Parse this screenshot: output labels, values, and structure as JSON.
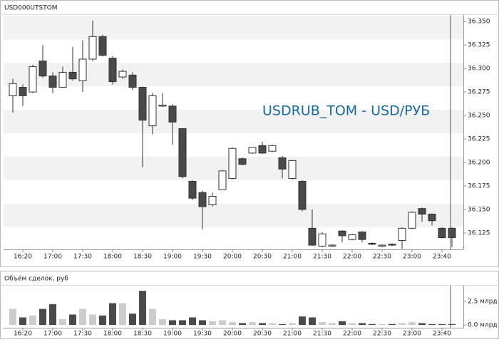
{
  "chart_data": [
    {
      "type": "candlestick",
      "title": "USD000UTSTOM",
      "annotation": "USDRUB_TOM - USD/РУБ",
      "categories": [
        null,
        "16:20",
        null,
        null,
        "17:00",
        null,
        null,
        "17:30",
        null,
        null,
        "18:00",
        null,
        null,
        "18:30",
        null,
        null,
        "19:00",
        null,
        null,
        "19:30",
        null,
        null,
        "20:00",
        null,
        null,
        "20:30",
        null,
        null,
        "21:00",
        null,
        null,
        "21:30",
        null,
        null,
        "22:00",
        null,
        null,
        "22:30",
        null,
        null,
        "23:00",
        null,
        null,
        "23:40",
        null
      ],
      "open": [
        36.271,
        36.28,
        36.275,
        36.308,
        36.292,
        36.28,
        36.296,
        36.287,
        36.31,
        36.334,
        36.311,
        36.291,
        36.293,
        36.28,
        36.239,
        36.26,
        36.26,
        36.236,
        36.18,
        36.168,
        36.155,
        36.171,
        36.183,
        36.204,
        36.21,
        36.218,
        36.212,
        36.205,
        36.183,
        36.18,
        36.13,
        36.111,
        36.111,
        36.127,
        36.118,
        36.126,
        36.114,
        36.111,
        36.113,
        36.117,
        36.13,
        36.151,
        36.145,
        36.13,
        36.13
      ],
      "high": [
        36.289,
        36.283,
        36.304,
        36.325,
        36.296,
        36.302,
        36.323,
        36.33,
        36.351,
        36.336,
        36.313,
        36.299,
        36.296,
        36.281,
        36.274,
        36.274,
        36.262,
        36.236,
        36.181,
        36.17,
        36.168,
        36.192,
        36.216,
        36.205,
        36.216,
        36.222,
        36.219,
        36.207,
        36.203,
        36.181,
        36.15,
        36.126,
        36.113,
        36.128,
        36.124,
        36.127,
        36.115,
        36.113,
        36.114,
        36.131,
        36.148,
        36.152,
        36.146,
        36.131,
        36.131
      ],
      "low": [
        36.253,
        36.26,
        36.274,
        36.29,
        36.274,
        36.28,
        36.287,
        36.275,
        36.308,
        36.313,
        36.283,
        36.289,
        36.277,
        36.195,
        36.23,
        36.259,
        36.219,
        36.183,
        36.16,
        36.129,
        36.153,
        36.171,
        36.182,
        36.197,
        36.209,
        36.209,
        36.211,
        36.183,
        36.182,
        36.148,
        36.111,
        36.11,
        36.11,
        36.115,
        36.117,
        36.115,
        36.112,
        36.11,
        36.111,
        36.108,
        36.129,
        36.137,
        36.133,
        36.119,
        36.11
      ],
      "close": [
        36.284,
        36.271,
        36.302,
        36.292,
        36.28,
        36.296,
        36.289,
        36.31,
        36.334,
        36.314,
        36.286,
        36.297,
        36.28,
        36.245,
        36.271,
        36.261,
        36.243,
        36.185,
        36.162,
        36.153,
        36.164,
        36.191,
        36.215,
        36.198,
        36.216,
        36.21,
        36.218,
        36.193,
        36.202,
        36.15,
        36.112,
        36.124,
        36.112,
        36.122,
        36.123,
        36.118,
        36.113,
        36.112,
        36.112,
        36.13,
        36.147,
        36.145,
        36.138,
        36.12,
        36.12
      ],
      "up_color": "#ffffff",
      "down_color": "#4a4a4a",
      "ylim": [
        36.1075,
        36.357
      ],
      "yticks": [
        {
          "value": 36.35,
          "label": "36.350"
        },
        36.325,
        {
          "value": 36.3,
          "label": "36.300"
        },
        36.275,
        {
          "value": 36.25,
          "label": "36.250"
        },
        36.225,
        {
          "value": 36.2,
          "label": "36.200"
        },
        36.175,
        {
          "value": 36.15,
          "label": "36.150"
        },
        36.125
      ]
    },
    {
      "type": "bar",
      "title": "Объём сделок, руб",
      "values": [
        1.7,
        0.8,
        1.0,
        1.7,
        2.2,
        0.6,
        1.1,
        1.7,
        1.1,
        1.0,
        2.3,
        2.3,
        1.2,
        3.6,
        1.7,
        0.6,
        0.5,
        0.5,
        0.8,
        0.5,
        0.4,
        0.5,
        0.3,
        0.2,
        0.3,
        0.2,
        0.2,
        0.1,
        0.2,
        0.9,
        0.8,
        0.3,
        0.2,
        0.4,
        0.2,
        0.2,
        0.1,
        0.1,
        0.1,
        0.2,
        0.3,
        0.2,
        0.1,
        0.1,
        0.1
      ],
      "colors": {
        "up": "#cccccc",
        "down": "#4a4a4a"
      },
      "ylim": [
        -0.29,
        4.14
      ],
      "yticks": [
        {
          "value": 2.5,
          "label": "2.5 млрд"
        },
        {
          "value": 0,
          "label": "0.0 млрд"
        }
      ]
    }
  ]
}
